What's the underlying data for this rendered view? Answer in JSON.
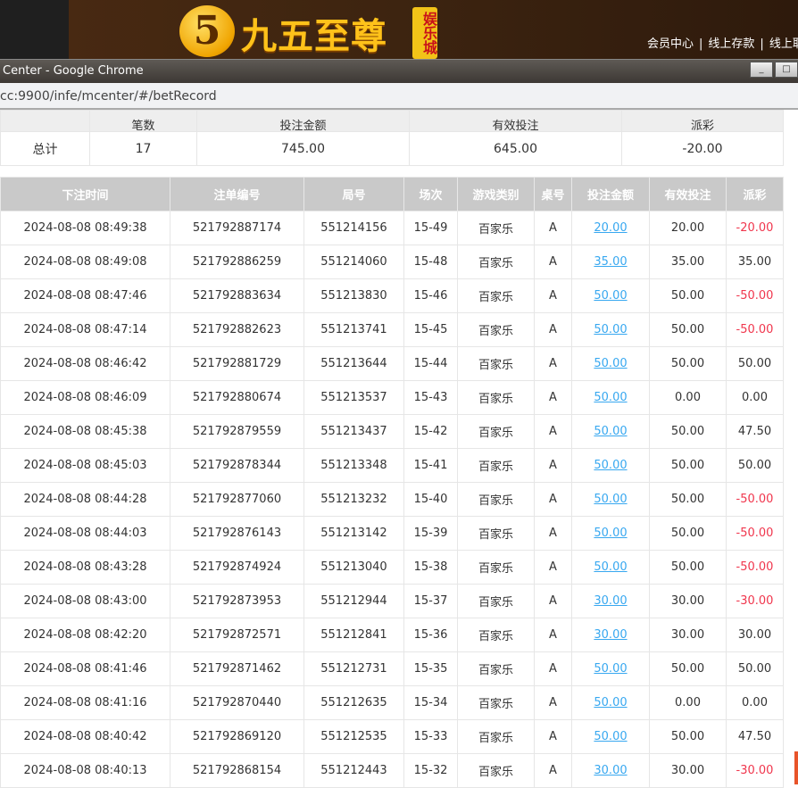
{
  "banner": {
    "logo_mark": "5",
    "logo_text": "九五至尊",
    "logo_badge": "娱乐城",
    "links": [
      "会员中心",
      "线上存款",
      "线上取"
    ],
    "separator": "|"
  },
  "browser": {
    "title": "Center - Google Chrome",
    "url": "cc:9900/infe/mcenter/#/betRecord",
    "minimize": "_",
    "maximize": "□"
  },
  "summary": {
    "headers": [
      "",
      "笔数",
      "投注金额",
      "有效投注",
      "派彩"
    ],
    "label": "总计",
    "count": "17",
    "bet_amount": "745.00",
    "valid_bet": "645.00",
    "payout": "-20.00"
  },
  "records": {
    "headers": [
      "下注时间",
      "注单编号",
      "局号",
      "场次",
      "游戏类别",
      "桌号",
      "投注金额",
      "有效投注",
      "派彩"
    ],
    "rows": [
      [
        "2024-08-08 08:49:38",
        "521792887174",
        "551214156",
        "15-49",
        "百家乐",
        "A",
        "20.00",
        "20.00",
        "-20.00"
      ],
      [
        "2024-08-08 08:49:08",
        "521792886259",
        "551214060",
        "15-48",
        "百家乐",
        "A",
        "35.00",
        "35.00",
        "35.00"
      ],
      [
        "2024-08-08 08:47:46",
        "521792883634",
        "551213830",
        "15-46",
        "百家乐",
        "A",
        "50.00",
        "50.00",
        "-50.00"
      ],
      [
        "2024-08-08 08:47:14",
        "521792882623",
        "551213741",
        "15-45",
        "百家乐",
        "A",
        "50.00",
        "50.00",
        "-50.00"
      ],
      [
        "2024-08-08 08:46:42",
        "521792881729",
        "551213644",
        "15-44",
        "百家乐",
        "A",
        "50.00",
        "50.00",
        "50.00"
      ],
      [
        "2024-08-08 08:46:09",
        "521792880674",
        "551213537",
        "15-43",
        "百家乐",
        "A",
        "50.00",
        "0.00",
        "0.00"
      ],
      [
        "2024-08-08 08:45:38",
        "521792879559",
        "551213437",
        "15-42",
        "百家乐",
        "A",
        "50.00",
        "50.00",
        "47.50"
      ],
      [
        "2024-08-08 08:45:03",
        "521792878344",
        "551213348",
        "15-41",
        "百家乐",
        "A",
        "50.00",
        "50.00",
        "50.00"
      ],
      [
        "2024-08-08 08:44:28",
        "521792877060",
        "551213232",
        "15-40",
        "百家乐",
        "A",
        "50.00",
        "50.00",
        "-50.00"
      ],
      [
        "2024-08-08 08:44:03",
        "521792876143",
        "551213142",
        "15-39",
        "百家乐",
        "A",
        "50.00",
        "50.00",
        "-50.00"
      ],
      [
        "2024-08-08 08:43:28",
        "521792874924",
        "551213040",
        "15-38",
        "百家乐",
        "A",
        "50.00",
        "50.00",
        "-50.00"
      ],
      [
        "2024-08-08 08:43:00",
        "521792873953",
        "551212944",
        "15-37",
        "百家乐",
        "A",
        "30.00",
        "30.00",
        "-30.00"
      ],
      [
        "2024-08-08 08:42:20",
        "521792872571",
        "551212841",
        "15-36",
        "百家乐",
        "A",
        "30.00",
        "30.00",
        "30.00"
      ],
      [
        "2024-08-08 08:41:46",
        "521792871462",
        "551212731",
        "15-35",
        "百家乐",
        "A",
        "50.00",
        "50.00",
        "50.00"
      ],
      [
        "2024-08-08 08:41:16",
        "521792870440",
        "551212635",
        "15-34",
        "百家乐",
        "A",
        "50.00",
        "0.00",
        "0.00"
      ],
      [
        "2024-08-08 08:40:42",
        "521792869120",
        "551212535",
        "15-33",
        "百家乐",
        "A",
        "50.00",
        "50.00",
        "47.50"
      ],
      [
        "2024-08-08 08:40:13",
        "521792868154",
        "551212443",
        "15-32",
        "百家乐",
        "A",
        "30.00",
        "30.00",
        "-30.00"
      ]
    ]
  },
  "colors": {
    "negative": "#f0364d",
    "link": "#38a8f0",
    "header_bg": "#c9c9c9"
  }
}
